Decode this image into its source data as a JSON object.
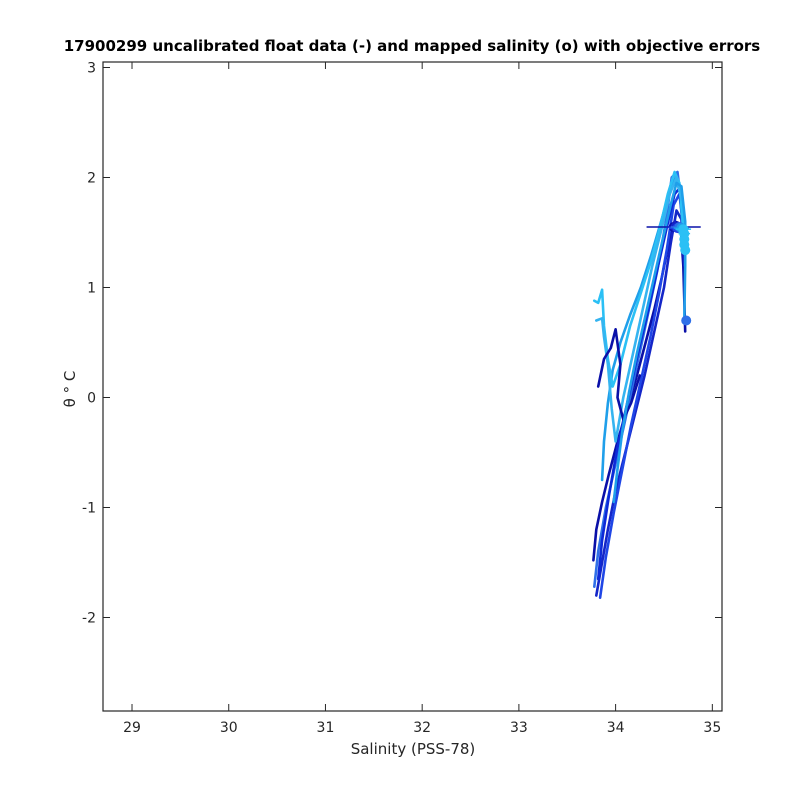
{
  "chart_data": {
    "type": "line",
    "title": "17900299 uncalibrated float data (-) and mapped salinity (o) with objective errors",
    "xlabel": "Salinity (PSS-78)",
    "ylabel": "θ ° C",
    "xlim": [
      28.7,
      35.1
    ],
    "ylim": [
      -2.85,
      3.05
    ],
    "xticks": [
      29,
      30,
      31,
      32,
      33,
      34,
      35
    ],
    "xtick_labels": [
      "29",
      "30",
      "31",
      "32",
      "33",
      "34",
      "35"
    ],
    "yticks": [
      -2,
      -1,
      0,
      1,
      2,
      3
    ],
    "ytick_labels": [
      "-2",
      "-1",
      "0",
      "1",
      "2",
      "3"
    ],
    "grid": false,
    "colors": {
      "dark_navy": "#0a10a8",
      "royal_blue": "#1f46e6",
      "medium_blue": "#2f6fe8",
      "sky_blue": "#1f9fea",
      "cyan": "#2bc0f5",
      "axes": "#262626"
    },
    "series": [
      {
        "color": "#0a10a8",
        "x": [
          33.77,
          33.8,
          33.86,
          33.93,
          34.02,
          34.12,
          34.22,
          34.31,
          34.4,
          34.48,
          34.55,
          34.61,
          34.67,
          34.7,
          34.72
        ],
        "y": [
          -1.48,
          -1.2,
          -0.95,
          -0.7,
          -0.4,
          -0.1,
          0.2,
          0.5,
          0.8,
          1.1,
          1.4,
          1.6,
          1.58,
          1.2,
          0.6
        ]
      },
      {
        "color": "#1426c8",
        "x": [
          33.8,
          33.85,
          33.92,
          34.0,
          34.1,
          34.2,
          34.3,
          34.4,
          34.5,
          34.57,
          34.63,
          34.68,
          34.71
        ],
        "y": [
          -1.8,
          -1.55,
          -1.2,
          -0.85,
          -0.5,
          -0.15,
          0.2,
          0.6,
          1.0,
          1.4,
          1.7,
          1.62,
          1.2
        ]
      },
      {
        "color": "#1f46e6",
        "x": [
          33.84,
          33.9,
          33.98,
          34.07,
          34.16,
          34.26,
          34.36,
          34.45,
          34.53,
          34.6,
          34.66,
          34.7
        ],
        "y": [
          -1.82,
          -1.45,
          -1.05,
          -0.65,
          -0.25,
          0.15,
          0.55,
          0.95,
          1.35,
          1.75,
          1.85,
          1.55
        ]
      },
      {
        "color": "#2f6fe8",
        "x": [
          33.78,
          33.82,
          33.9,
          34.0,
          34.1,
          34.21,
          34.32,
          34.43,
          34.52,
          34.58,
          34.64,
          34.69
        ],
        "y": [
          -1.72,
          -1.4,
          -1.0,
          -0.6,
          -0.2,
          0.25,
          0.7,
          1.15,
          1.6,
          2.0,
          2.05,
          1.7
        ]
      },
      {
        "color": "#0d2ad8",
        "x": [
          33.82,
          33.86,
          33.93,
          34.02,
          34.12,
          34.23,
          34.34,
          34.44,
          34.53,
          34.61,
          34.66,
          34.7
        ],
        "y": [
          -1.65,
          -1.3,
          -0.9,
          -0.45,
          -0.05,
          0.4,
          0.8,
          1.2,
          1.55,
          1.85,
          1.9,
          1.5
        ]
      },
      {
        "color": "#1f9fea",
        "x": [
          33.86,
          33.88,
          33.92,
          33.97,
          34.05,
          34.15,
          34.26,
          34.37,
          34.47,
          34.55,
          34.62,
          34.67,
          34.7
        ],
        "y": [
          -0.75,
          -0.4,
          -0.05,
          0.25,
          0.5,
          0.75,
          1.0,
          1.3,
          1.6,
          1.85,
          2.0,
          1.85,
          1.45
        ]
      },
      {
        "color": "#2bc0f5",
        "x": [
          33.78,
          33.82,
          33.86,
          33.88,
          33.92,
          33.97,
          34.05,
          34.15,
          34.26,
          34.37,
          34.46,
          34.54,
          34.61,
          34.66,
          34.7
        ],
        "y": [
          0.88,
          0.86,
          0.98,
          0.65,
          0.35,
          0.1,
          0.3,
          0.65,
          0.95,
          1.25,
          1.55,
          1.85,
          2.05,
          1.95,
          1.55
        ]
      },
      {
        "color": "#35b4f0",
        "x": [
          33.8,
          33.86,
          33.88,
          33.92,
          33.96,
          34.0,
          34.08,
          34.18,
          34.28,
          34.38,
          34.48,
          34.56,
          34.63,
          34.68
        ],
        "y": [
          0.7,
          0.72,
          0.55,
          0.3,
          -0.1,
          -0.4,
          0.0,
          0.4,
          0.8,
          1.2,
          1.55,
          1.85,
          2.0,
          1.8
        ]
      },
      {
        "color": "#0a10a8",
        "x": [
          33.82,
          33.88,
          33.95,
          34.0,
          34.05,
          34.02,
          34.08,
          34.16,
          34.25
        ],
        "y": [
          0.1,
          0.35,
          0.45,
          0.62,
          0.3,
          0.0,
          -0.2,
          -0.05,
          0.2
        ]
      },
      {
        "color": "#1f9fea",
        "x": [
          33.98,
          34.02,
          34.07,
          34.14,
          34.22,
          34.31,
          34.4,
          34.49,
          34.57,
          34.63,
          34.68,
          34.72,
          34.72,
          34.71
        ],
        "y": [
          -0.95,
          -0.65,
          -0.3,
          0.05,
          0.4,
          0.75,
          1.1,
          1.45,
          1.75,
          1.95,
          1.92,
          1.6,
          1.2,
          0.7
        ]
      }
    ],
    "mapped_points": {
      "x": [
        34.6,
        34.62,
        34.64,
        34.66,
        34.68,
        34.7,
        34.71,
        34.71,
        34.71,
        34.72,
        34.73
      ],
      "y": [
        1.55,
        1.55,
        1.54,
        1.55,
        1.54,
        1.53,
        1.49,
        1.44,
        1.39,
        1.34,
        0.7
      ],
      "errors": [
        0.28,
        0.1,
        0.09,
        0.09,
        0.08,
        0.08,
        0.06,
        0.05,
        0.05,
        0.05,
        0.02
      ],
      "colors": [
        "#0a10a8",
        "#1426c8",
        "#1f46e6",
        "#2f6fe8",
        "#1f9fea",
        "#2bc0f5",
        "#2bc0f5",
        "#2bc0f5",
        "#2bc0f5",
        "#2bc0f5",
        "#2f6fe8"
      ]
    }
  }
}
